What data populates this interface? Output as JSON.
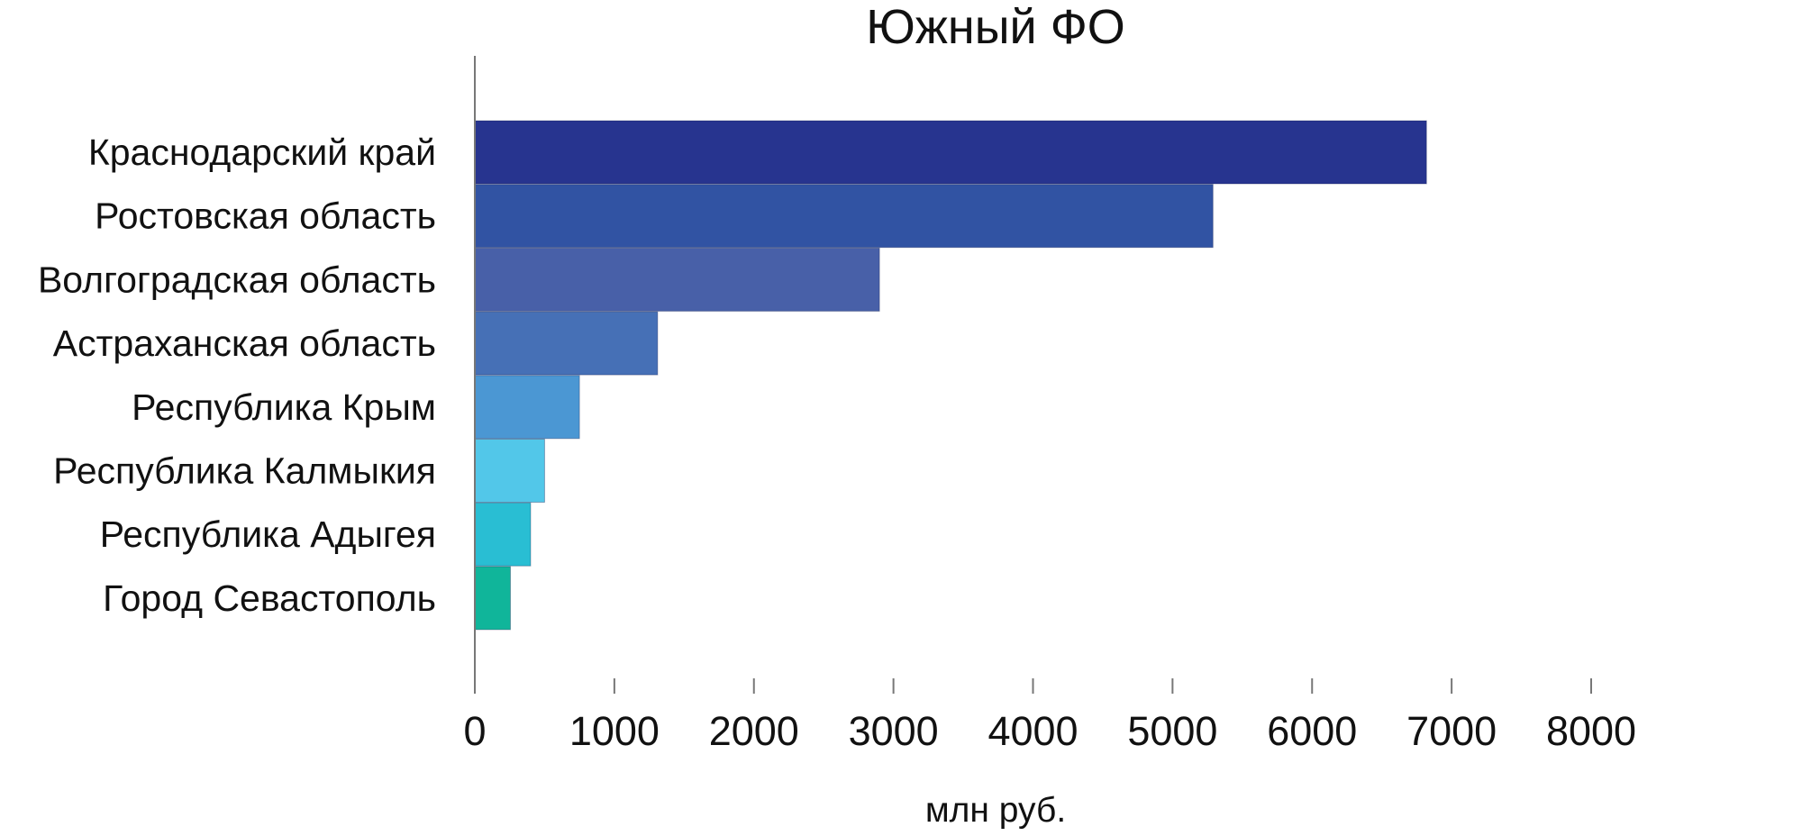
{
  "chart_data": {
    "type": "bar",
    "orientation": "horizontal",
    "title": "Южный ФО",
    "xlabel": "млн руб.",
    "ylabel": "",
    "xlim": [
      0,
      8000
    ],
    "x_ticks": [
      0,
      1000,
      2000,
      3000,
      4000,
      5000,
      6000,
      7000,
      8000
    ],
    "x_tick_labels": [
      "0",
      "1000",
      "2000",
      "3000",
      "4000",
      "5000",
      "6000",
      "7000",
      "8000"
    ],
    "grid": false,
    "legend": "none",
    "categories": [
      "Краснодарский край",
      "Ростовская область",
      "Волгоградская область",
      "Астраханская область",
      "Республика Крым",
      "Республика Калмыкия",
      "Республика Адыгея",
      "Город Севастополь"
    ],
    "values": [
      6820,
      5290,
      2900,
      1310,
      750,
      500,
      400,
      255
    ],
    "colors": [
      "#27348f",
      "#3153a3",
      "#4860a8",
      "#4670b6",
      "#4b97d3",
      "#52c7e9",
      "#29bed3",
      "#10b59a"
    ]
  }
}
